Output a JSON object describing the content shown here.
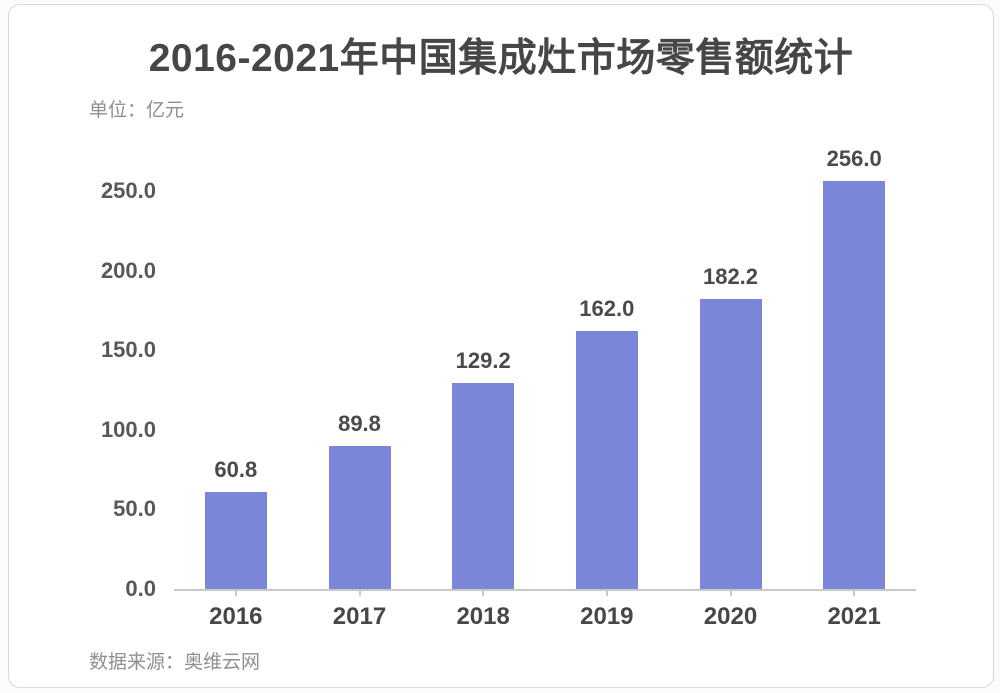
{
  "chart": {
    "title": "2016-2021年中国集成灶市场零售额统计",
    "unit_label": "单位：亿元",
    "source_label": "数据来源：奥维云网"
  },
  "chart_data": {
    "type": "bar",
    "title": "2016-2021年中国集成灶市场零售额统计",
    "unit": "亿元",
    "source": "数据来源：奥维云网",
    "categories": [
      "2016",
      "2017",
      "2018",
      "2019",
      "2020",
      "2021"
    ],
    "values": [
      60.8,
      89.8,
      129.2,
      162.0,
      182.2,
      256.0
    ],
    "value_labels": [
      "60.8",
      "89.8",
      "129.2",
      "162.0",
      "182.2",
      "256.0"
    ],
    "xlabel": "",
    "ylabel": "",
    "ylim": [
      0,
      250
    ],
    "yticks": [
      0,
      50,
      100,
      150,
      200,
      250
    ],
    "ytick_labels": [
      "0.0",
      "50.0",
      "100.0",
      "150.0",
      "200.0",
      "250.0"
    ],
    "grid": false,
    "legend_position": "none",
    "bar_color": "#7b86d9",
    "axis_color": "#c9c9c9"
  },
  "colors": {
    "bar": "#7b86d9",
    "axis": "#c9c9c9",
    "title_text": "#464646",
    "muted_text": "#8f8f8f",
    "card_border": "#d8d8d8",
    "background": "#ffffff"
  }
}
